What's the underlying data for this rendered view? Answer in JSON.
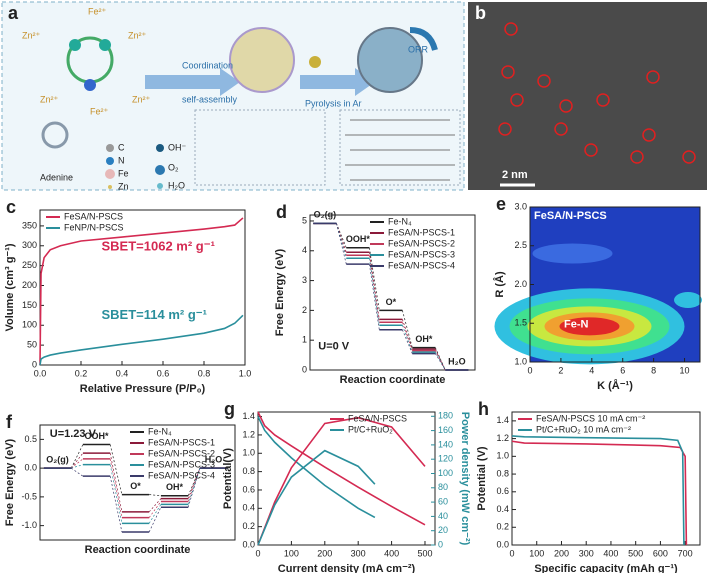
{
  "schematic": {
    "label": "a",
    "texts": [
      "Fe²⁺",
      "Zn²⁺",
      "Zn²⁺",
      "Zn²⁺",
      "Fe²⁺",
      "Zn²⁺",
      "Coordination",
      "self-assembly",
      "Pyrolysis in Ar",
      "ORR",
      "Adenine",
      "C",
      "N",
      "Fe",
      "Zn",
      "OH⁻",
      "O₂",
      "H₂O"
    ]
  },
  "micrograph": {
    "label": "b",
    "scale": "2 nm"
  },
  "chart_data": [
    {
      "type": "line",
      "label": "c",
      "xlabel": "Relative Pressure (P/P₀)",
      "ylabel": "Volume (cm³ g⁻¹)",
      "xlim": [
        0,
        1
      ],
      "xticks": [
        {
          "value": 0,
          "label": "0.0"
        },
        0.2,
        0.4,
        0.6,
        0.8,
        {
          "value": 1,
          "label": "1.0"
        }
      ],
      "ylim": [
        0,
        390
      ],
      "yticks": [
        0,
        50,
        100,
        150,
        200,
        250,
        300,
        350
      ],
      "legend": "upper left",
      "series": [
        {
          "name": "FeSA/N-PSCS",
          "color": "#d42a52",
          "x": [
            0,
            0.005,
            0.02,
            0.05,
            0.1,
            0.2,
            0.4,
            0.6,
            0.8,
            0.9,
            0.95,
            0.99
          ],
          "values": [
            0,
            230,
            270,
            290,
            300,
            312,
            322,
            332,
            342,
            348,
            352,
            370
          ]
        },
        {
          "name": "FeNP/N-PSCS",
          "color": "#2a8f9c",
          "x": [
            0,
            0.005,
            0.02,
            0.05,
            0.1,
            0.2,
            0.4,
            0.6,
            0.8,
            0.9,
            0.95,
            0.99
          ],
          "values": [
            0,
            15,
            20,
            25,
            30,
            38,
            52,
            65,
            80,
            92,
            105,
            125
          ]
        }
      ],
      "annotations": [
        "SBET=1062 m² g⁻¹",
        "SBET=114 m² g⁻¹"
      ]
    },
    {
      "type": "step",
      "label": "d",
      "xlabel": "Reaction coordinate",
      "ylabel": "Free Energy (eV)",
      "categories": [
        "O₂(g)",
        "OOH*",
        "O*",
        "OH*",
        "H₂O"
      ],
      "ylim": [
        0,
        5.2
      ],
      "yticks": [
        0,
        1,
        2,
        3,
        4,
        5
      ],
      "legend": "upper right",
      "series": [
        {
          "name": "Fe-N₄",
          "color": "#222222",
          "values": [
            4.92,
            4.1,
            2.0,
            0.75,
            0
          ]
        },
        {
          "name": "FeSA/N-PSCS-1",
          "color": "#8b1a3a",
          "values": [
            4.92,
            3.95,
            1.7,
            0.7,
            0
          ]
        },
        {
          "name": "FeSA/N-PSCS-2",
          "color": "#c0395a",
          "values": [
            4.92,
            3.85,
            1.6,
            0.65,
            0
          ]
        },
        {
          "name": "FeSA/N-PSCS-3",
          "color": "#2a8f9c",
          "values": [
            4.92,
            3.75,
            1.5,
            0.6,
            0
          ]
        },
        {
          "name": "FeSA/N-PSCS-4",
          "color": "#3a3a6a",
          "values": [
            4.92,
            3.55,
            1.35,
            0.55,
            0
          ]
        }
      ],
      "annotations": [
        "U=0 V"
      ]
    },
    {
      "type": "contour",
      "label": "e",
      "title": "FeSA/N-PSCS",
      "xlabel": "K (Å⁻¹)",
      "ylabel": "R (Å)",
      "xlim": [
        0,
        11
      ],
      "xticks": [
        0,
        2,
        4,
        6,
        8,
        10
      ],
      "ylim": [
        1,
        3
      ],
      "yticks": [
        {
          "value": 1,
          "label": "1.0"
        },
        1.5,
        {
          "value": 2,
          "label": "2.0"
        },
        2.5,
        {
          "value": 3,
          "label": "3.0"
        }
      ],
      "annotations": [
        "Fe-N"
      ]
    },
    {
      "type": "step",
      "label": "f",
      "xlabel": "Reaction coordinate",
      "ylabel": "Free Energy (eV)",
      "categories": [
        "O₂(g)",
        "OOH*",
        "O*",
        "OH*",
        "H₂O"
      ],
      "ylim": [
        -1.25,
        0.75
      ],
      "yticks": [
        {
          "value": -1,
          "label": "-1.0"
        },
        -0.5,
        {
          "value": 0,
          "label": "0.0"
        },
        0.5
      ],
      "legend": "upper right",
      "series": [
        {
          "name": "Fe-N₄",
          "color": "#222222",
          "values": [
            0,
            0.41,
            -0.46,
            -0.48,
            0
          ]
        },
        {
          "name": "FeSA/N-PSCS-1",
          "color": "#8b1a3a",
          "values": [
            0,
            0.26,
            -0.76,
            -0.53,
            0
          ]
        },
        {
          "name": "FeSA/N-PSCS-2",
          "color": "#c0395a",
          "values": [
            0,
            0.16,
            -0.86,
            -0.58,
            0
          ]
        },
        {
          "name": "FeSA/N-PSCS-3",
          "color": "#2a8f9c",
          "values": [
            0,
            0.06,
            -0.96,
            -0.63,
            0
          ]
        },
        {
          "name": "FeSA/N-PSCS-4",
          "color": "#3a3a6a",
          "values": [
            0,
            -0.14,
            -1.11,
            -0.68,
            0
          ]
        }
      ],
      "annotations": [
        "U=1.23 V"
      ]
    },
    {
      "type": "line",
      "label": "g",
      "xlabel": "Current density (mA cm⁻²)",
      "ylabel": "Potential(V)",
      "y2label": "Power density (mW cm⁻²)",
      "xlim": [
        0,
        530
      ],
      "xticks": [
        0,
        100,
        200,
        300,
        400,
        500
      ],
      "ylim": [
        0,
        1.45
      ],
      "yticks": [
        {
          "value": 0,
          "label": "0.0"
        },
        0.2,
        0.4,
        0.6,
        0.8,
        {
          "value": 1,
          "label": "1.0"
        },
        1.2,
        1.4
      ],
      "y2lim": [
        0,
        186
      ],
      "y2ticks": [
        0,
        20,
        40,
        60,
        80,
        100,
        120,
        140,
        160,
        180
      ],
      "legend": "upper right",
      "series": [
        {
          "name": "FeSA/N-PSCS",
          "color": "#d42a52",
          "x": [
            0,
            20,
            50,
            100,
            200,
            300,
            400,
            500
          ],
          "values": [
            1.45,
            1.3,
            1.2,
            1.08,
            0.85,
            0.63,
            0.42,
            0.22
          ]
        },
        {
          "name": "Pt/C+RuO₂",
          "color": "#2a8f9c",
          "x": [
            0,
            20,
            50,
            100,
            200,
            300,
            350
          ],
          "values": [
            1.4,
            1.25,
            1.12,
            0.95,
            0.65,
            0.4,
            0.3
          ]
        },
        {
          "color": "#d42a52",
          "axis": "y2",
          "x": [
            0,
            50,
            100,
            200,
            300,
            400,
            500
          ],
          "values": [
            0,
            60,
            108,
            170,
            178,
            165,
            110
          ]
        },
        {
          "color": "#2a8f9c",
          "axis": "y2",
          "x": [
            0,
            50,
            100,
            200,
            300,
            350
          ],
          "values": [
            0,
            56,
            95,
            132,
            110,
            85
          ]
        }
      ]
    },
    {
      "type": "line",
      "label": "h",
      "xlabel": "Specific capacity (mAh g⁻¹)",
      "ylabel": "Potential (V)",
      "xlim": [
        0,
        760
      ],
      "xticks": [
        0,
        100,
        200,
        300,
        400,
        500,
        600,
        700
      ],
      "ylim": [
        0,
        1.5
      ],
      "yticks": [
        {
          "value": 0,
          "label": "0.0"
        },
        0.2,
        0.4,
        0.6,
        0.8,
        {
          "value": 1,
          "label": "1.0"
        },
        1.2,
        1.4
      ],
      "legend": "upper left",
      "series": [
        {
          "name": "FeSA/N-PSCS 10 mA cm⁻²",
          "color": "#d42a52",
          "x": [
            0,
            50,
            300,
            600,
            680,
            700,
            705
          ],
          "values": [
            1.17,
            1.15,
            1.14,
            1.12,
            1.1,
            1.0,
            0
          ]
        },
        {
          "name": "Pt/C+RuO₂ 10 mA cm⁻²",
          "color": "#2a8f9c",
          "x": [
            0,
            50,
            300,
            600,
            670,
            690,
            695
          ],
          "values": [
            1.23,
            1.22,
            1.21,
            1.2,
            1.18,
            1.05,
            0
          ]
        }
      ]
    }
  ]
}
